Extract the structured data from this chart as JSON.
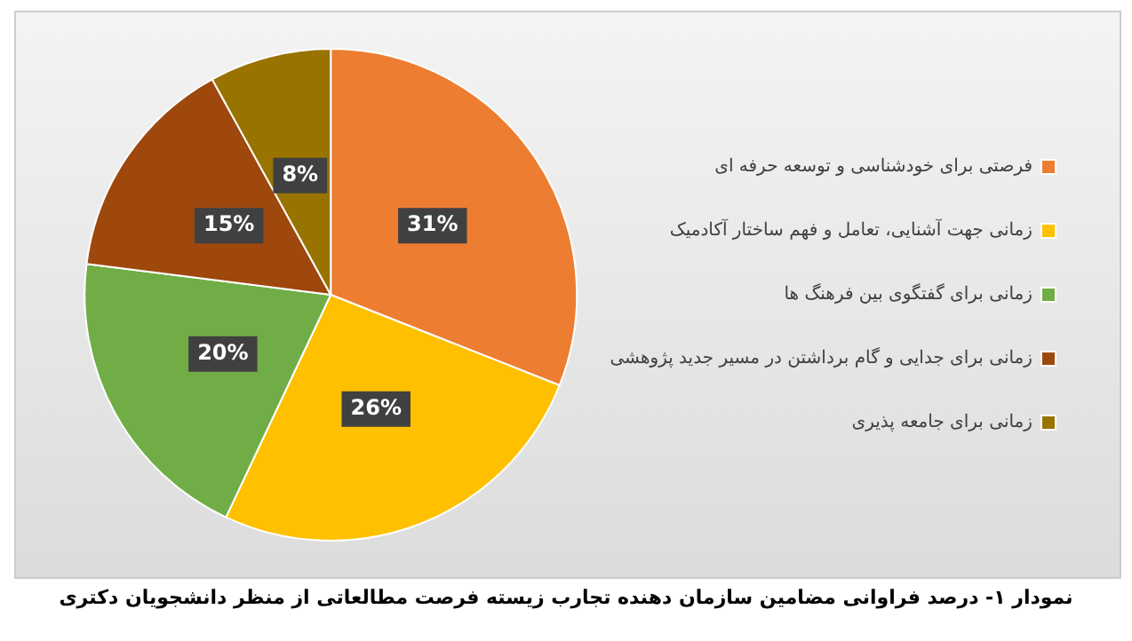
{
  "chart_data": {
    "type": "pie",
    "categories": [
      "فرصتی برای خودشناسی و توسعه حرفه ای",
      "زمانی جهت آشنایی، تعامل و فهم ساختار آکادمیک",
      "زمانی برای گفتگوی بین فرهنگ ها",
      "زمانی برای جدایی و گام برداشتن در مسیر جدید پژوهشی",
      "زمانی برای جامعه پذیری"
    ],
    "values": [
      31,
      26,
      20,
      15,
      8
    ],
    "colors": [
      "#ed7d31",
      "#ffc000",
      "#70ad47",
      "#9e480e",
      "#997300"
    ],
    "value_labels": [
      "31%",
      "26%",
      "20%",
      "15%",
      "8%"
    ],
    "legend": "right",
    "annotations": [
      "نمودار ۱- درصد فراوانی مضامین سازمان دهنده تجارب زیسته فرصت مطالعاتی از منظر دانشجویان دکتری"
    ]
  }
}
